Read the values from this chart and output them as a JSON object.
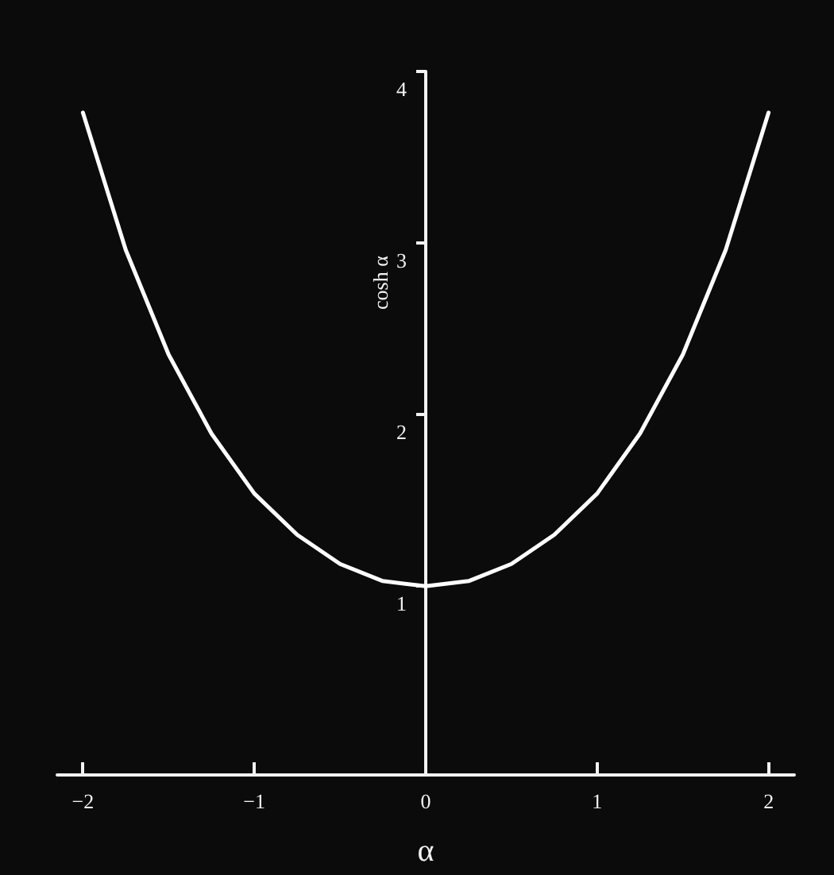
{
  "chart_data": {
    "type": "line",
    "xlabel": "α",
    "ylabel": "cosh α",
    "x": [
      -2,
      -1.75,
      -1.5,
      -1.25,
      -1,
      -0.75,
      -0.5,
      -0.25,
      0,
      0.25,
      0.5,
      0.75,
      1,
      1.25,
      1.5,
      1.75,
      2
    ],
    "series": [
      {
        "color": "#ffffff",
        "values": [
          3.76,
          2.96,
          2.35,
          1.89,
          1.54,
          1.3,
          1.13,
          1.03,
          1.0,
          1.03,
          1.13,
          1.3,
          1.54,
          1.89,
          2.35,
          2.96,
          3.76
        ]
      }
    ],
    "xlim": [
      -2.15,
      2.15
    ],
    "xticks": [
      -2,
      -1,
      0,
      1,
      2
    ],
    "ylim": [
      -0.1,
      4
    ],
    "yticks": [
      1,
      2,
      3,
      4
    ],
    "grid": false,
    "marker": "none",
    "line_style": "solid"
  }
}
